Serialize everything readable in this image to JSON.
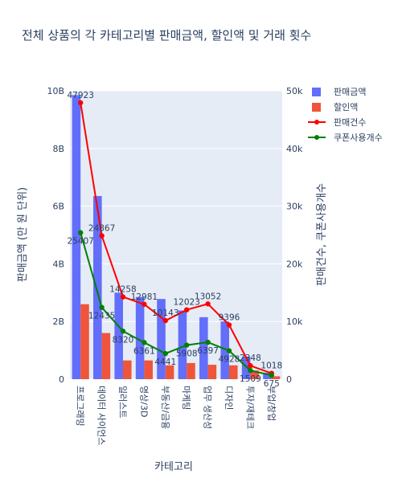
{
  "chart_data": {
    "type": "bar",
    "title": "전체 상품의 각 카테고리별 판매금액, 할인액 및 거래 횟수",
    "xlabel": "카테고리",
    "ylabel": "판매금액 (만 원 단위)",
    "y2label": "판매건수, 쿠폰사용개수",
    "categories": [
      "프로그래밍",
      "데이터 사이언스",
      "일러스트",
      "영상/3D",
      "부동산/금융",
      "마케팅",
      "업무 생산성",
      "디자인",
      "투자/재테크",
      "부업/창업"
    ],
    "ylim": [
      0,
      10000000000
    ],
    "yticks": [
      "0",
      "2B",
      "4B",
      "6B",
      "8B",
      "10B"
    ],
    "y2lim": [
      0,
      50000
    ],
    "y2ticks": [
      "0",
      "10k",
      "20k",
      "30k",
      "40k",
      "50k"
    ],
    "grid": true,
    "legend_position": "top-right",
    "colors": {
      "sales_amount": "#636efa",
      "discount": "#ef553b",
      "sales_count": "#ff0000",
      "coupon_count": "#008000"
    },
    "series": [
      {
        "name": "판매금액",
        "axis": "y",
        "kind": "bar",
        "values": [
          9850000000,
          6350000000,
          3000000000,
          2850000000,
          2780000000,
          2380000000,
          2150000000,
          2000000000,
          780000000,
          220000000
        ]
      },
      {
        "name": "할인액",
        "axis": "y",
        "kind": "bar",
        "values": [
          2600000000,
          1600000000,
          650000000,
          650000000,
          480000000,
          560000000,
          500000000,
          480000000,
          300000000,
          100000000
        ]
      },
      {
        "name": "판매건수",
        "axis": "y2",
        "kind": "line",
        "values": [
          47923,
          24867,
          14258,
          12981,
          10143,
          12023,
          13052,
          9396,
          2348,
          1018
        ],
        "labels": [
          "47923",
          "24867",
          "14258",
          "12981",
          "10143",
          "12023",
          "13052",
          "9396",
          "2348",
          "1018"
        ]
      },
      {
        "name": "쿠폰사용개수",
        "axis": "y2",
        "kind": "line",
        "values": [
          25407,
          12435,
          8320,
          6361,
          4441,
          5908,
          6397,
          4928,
          1509,
          675
        ],
        "labels": [
          "25407",
          "12435",
          "8320",
          "6361",
          "4441",
          "5908",
          "6397",
          "4928",
          "1509",
          "675"
        ]
      }
    ]
  }
}
